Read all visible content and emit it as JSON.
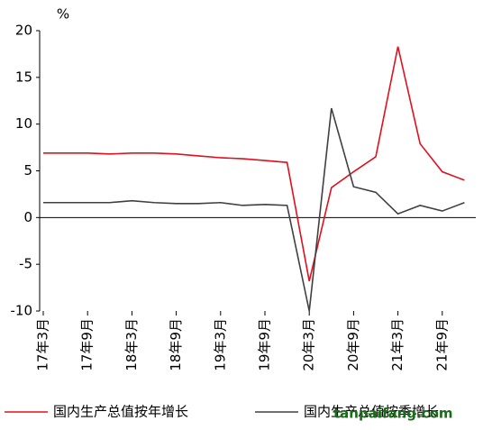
{
  "chart_data": {
    "type": "line",
    "y_unit": "%",
    "categories": [
      "17年3月",
      null,
      "17年9月",
      null,
      "18年3月",
      null,
      "18年9月",
      null,
      "19年3月",
      null,
      "19年9月",
      null,
      "20年3月",
      null,
      "20年9月",
      null,
      "21年3月",
      null,
      "21年9月",
      null
    ],
    "series": [
      {
        "name": "国内生产总值按年增长",
        "color": "#e0101e",
        "values": [
          6.9,
          6.9,
          6.9,
          6.8,
          6.9,
          6.9,
          6.8,
          6.6,
          6.4,
          6.3,
          6.1,
          5.9,
          -6.8,
          3.2,
          4.9,
          6.5,
          18.3,
          7.9,
          4.9,
          4.0
        ]
      },
      {
        "name": "国内生产总值按季增长",
        "color": "#404040",
        "values": [
          1.6,
          1.6,
          1.6,
          1.6,
          1.8,
          1.6,
          1.5,
          1.5,
          1.6,
          1.3,
          1.4,
          1.3,
          -10.0,
          11.7,
          3.3,
          2.7,
          0.4,
          1.3,
          0.7,
          1.6
        ]
      }
    ],
    "ylim": [
      -10,
      20
    ],
    "yticks": [
      -10,
      -5,
      0,
      5,
      10,
      15,
      20
    ],
    "grid": false,
    "watermark": "tanpaifang.com"
  }
}
